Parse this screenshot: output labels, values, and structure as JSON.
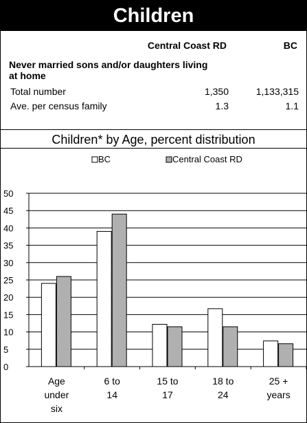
{
  "section": {
    "title": "Children"
  },
  "table": {
    "col_region": "Central Coast RD",
    "col_prov": "BC",
    "group_label": "Never married sons and/or daughters living at home",
    "rows": [
      {
        "label": "Total number",
        "region": "1,350",
        "prov": "1,133,315"
      },
      {
        "label": "Ave. per census family",
        "region": "1.3",
        "prov": "1.1"
      }
    ]
  },
  "chart_data": {
    "type": "bar",
    "title": "Children* by Age, percent distribution",
    "categories": [
      [
        "Age",
        "under",
        "six"
      ],
      [
        "6 to",
        "14"
      ],
      [
        "15 to",
        "17"
      ],
      [
        "18 to",
        "24"
      ],
      [
        "25 +",
        "years"
      ]
    ],
    "series": [
      {
        "name": "BC",
        "color": "#ffffff",
        "values": [
          24,
          39,
          12.2,
          16.7,
          7.4
        ]
      },
      {
        "name": "Central Coast RD",
        "color": "#b0b0b0",
        "values": [
          26,
          44,
          11.5,
          11.5,
          6.6
        ]
      }
    ],
    "ylim": [
      0,
      50
    ],
    "yticks": [
      "0",
      "5",
      "10",
      "15",
      "20",
      "25",
      "30",
      "35",
      "40",
      "45",
      "50"
    ],
    "grid": true,
    "legend": "top"
  }
}
